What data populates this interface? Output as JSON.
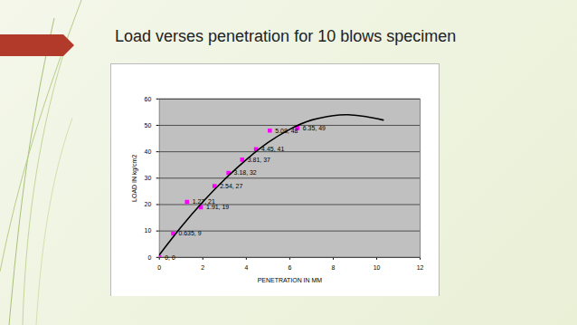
{
  "chart_data": {
    "type": "scatter",
    "title": "Load verses penetration for 10 blows specimen",
    "x_label": "PENETRATION IN MM",
    "y_label": "LOAD IN kg/cm2",
    "xlim": [
      0,
      12
    ],
    "xticks": [
      0,
      2,
      4,
      6,
      8,
      10,
      12
    ],
    "ylim": [
      0,
      60
    ],
    "yticks": [
      0,
      10,
      20,
      30,
      40,
      50,
      60
    ],
    "grid": true,
    "data_labels": true,
    "series": [
      {
        "type": "scatter",
        "color": "#ff00ff",
        "marker": "square",
        "x": [
          0,
          0.635,
          1.27,
          1.91,
          2.54,
          3.18,
          3.81,
          4.45,
          5.08,
          6.35
        ],
        "values": [
          0,
          9,
          21,
          19,
          27,
          32,
          37,
          41,
          48,
          49
        ],
        "value_labels": [
          "0, 0",
          "0.635, 9",
          "1.27, 21",
          "1.91, 19",
          "2.54, 27",
          "3.18, 32",
          "3.81, 37",
          "4.45, 41",
          "5.08, 48",
          "6.35, 49"
        ]
      },
      {
        "type": "line",
        "color": "#000000",
        "line_style": "solid",
        "x": [
          0,
          1,
          2,
          3,
          4,
          5,
          6,
          7,
          8,
          8.7,
          9.5,
          10.3
        ],
        "values": [
          1,
          11.5,
          21,
          29.5,
          37,
          43.5,
          48.5,
          52,
          53.7,
          54,
          53.3,
          52
        ]
      }
    ]
  }
}
